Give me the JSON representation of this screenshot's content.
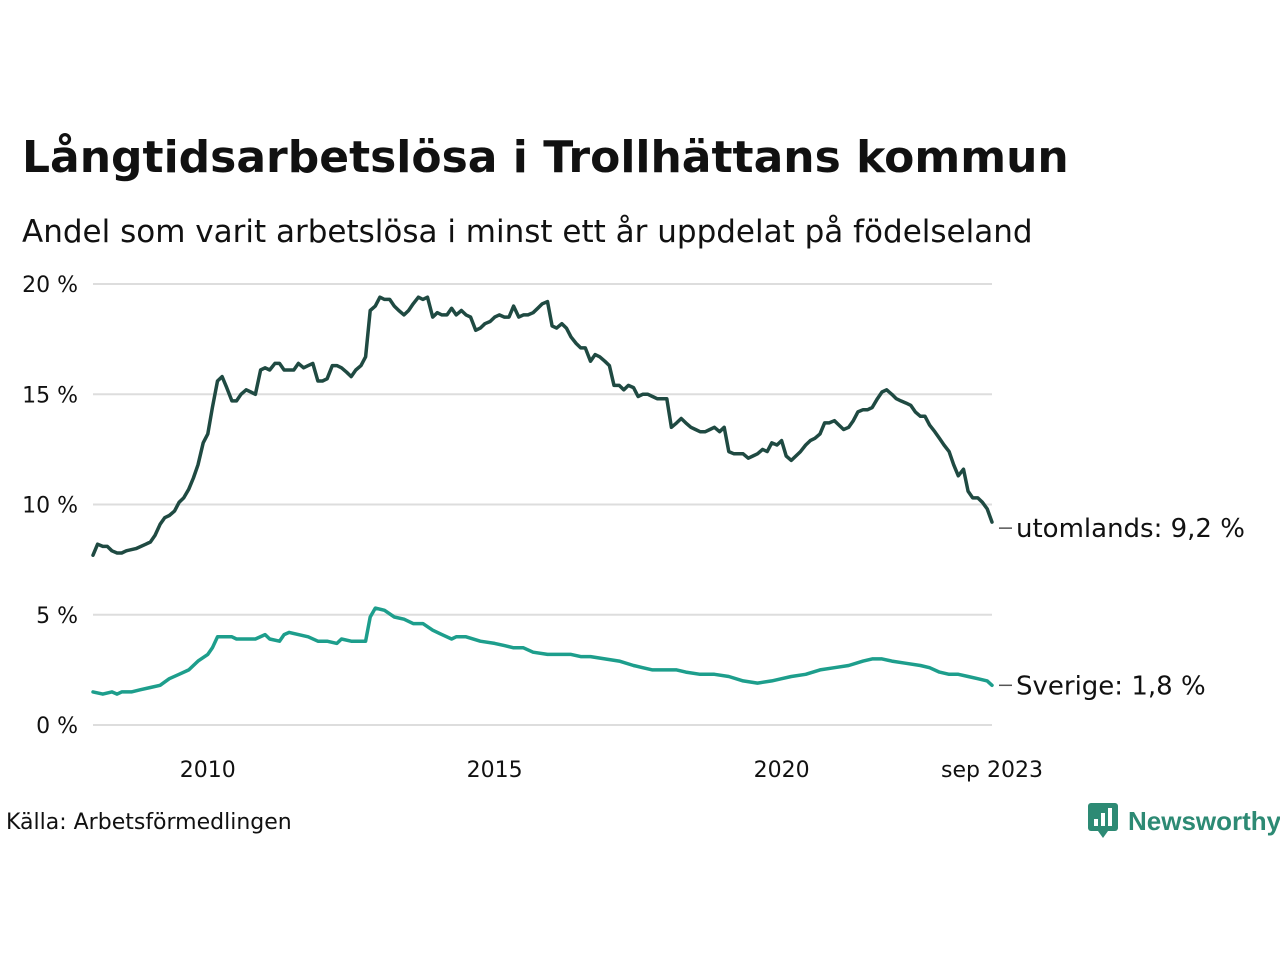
{
  "title": "Långtidsarbetslösa i Trollhättans kommun",
  "subtitle": "Andel som varit arbetslösa i minst ett år uppdelat på födelseland",
  "source": "Källa: Arbetsförmedlingen",
  "brand": "Newsworthy",
  "colors": {
    "utomlands": "#1f4a42",
    "sverige": "#1d9e8c",
    "grid": "#dddddd",
    "brand": "#2d8a74"
  },
  "chart_data": {
    "type": "line",
    "title": "Långtidsarbetslösa i Trollhättans kommun",
    "subtitle": "Andel som varit arbetslösa i minst ett år uppdelat på födelseland",
    "xlabel": "",
    "ylabel": "",
    "x_start": "2008-01",
    "x_end": "2023-09",
    "xlim": [
      2008.0,
      2023.667
    ],
    "ylim": [
      0,
      20
    ],
    "y_ticks": [
      0,
      5,
      10,
      15,
      20
    ],
    "y_tick_labels": [
      "0 %",
      "5 %",
      "10 %",
      "15 %",
      "20 %"
    ],
    "x_ticks": [
      2010,
      2015,
      2020,
      2023.667
    ],
    "x_tick_labels": [
      "2010",
      "2015",
      "2020",
      "sep 2023"
    ],
    "grid": true,
    "series": [
      {
        "name": "utomlands",
        "end_label": "utomlands: 9,2 %",
        "points": [
          [
            2008.0,
            7.7
          ],
          [
            2008.08,
            8.2
          ],
          [
            2008.17,
            8.1
          ],
          [
            2008.25,
            8.1
          ],
          [
            2008.33,
            7.9
          ],
          [
            2008.42,
            7.8
          ],
          [
            2008.5,
            7.8
          ],
          [
            2008.58,
            7.9
          ],
          [
            2008.75,
            8.0
          ],
          [
            2008.92,
            8.2
          ],
          [
            2009.0,
            8.3
          ],
          [
            2009.08,
            8.6
          ],
          [
            2009.17,
            9.1
          ],
          [
            2009.25,
            9.4
          ],
          [
            2009.33,
            9.5
          ],
          [
            2009.42,
            9.7
          ],
          [
            2009.5,
            10.1
          ],
          [
            2009.58,
            10.3
          ],
          [
            2009.67,
            10.7
          ],
          [
            2009.75,
            11.2
          ],
          [
            2009.83,
            11.8
          ],
          [
            2009.92,
            12.8
          ],
          [
            2010.0,
            13.2
          ],
          [
            2010.08,
            14.4
          ],
          [
            2010.17,
            15.6
          ],
          [
            2010.25,
            15.8
          ],
          [
            2010.33,
            15.3
          ],
          [
            2010.42,
            14.7
          ],
          [
            2010.5,
            14.7
          ],
          [
            2010.58,
            15.0
          ],
          [
            2010.67,
            15.2
          ],
          [
            2010.75,
            15.1
          ],
          [
            2010.83,
            15.0
          ],
          [
            2010.92,
            16.1
          ],
          [
            2011.0,
            16.2
          ],
          [
            2011.08,
            16.1
          ],
          [
            2011.17,
            16.4
          ],
          [
            2011.25,
            16.4
          ],
          [
            2011.33,
            16.1
          ],
          [
            2011.42,
            16.1
          ],
          [
            2011.5,
            16.1
          ],
          [
            2011.58,
            16.4
          ],
          [
            2011.67,
            16.2
          ],
          [
            2011.75,
            16.3
          ],
          [
            2011.83,
            16.4
          ],
          [
            2011.92,
            15.6
          ],
          [
            2012.0,
            15.6
          ],
          [
            2012.08,
            15.7
          ],
          [
            2012.17,
            16.3
          ],
          [
            2012.25,
            16.3
          ],
          [
            2012.33,
            16.2
          ],
          [
            2012.42,
            16.0
          ],
          [
            2012.5,
            15.8
          ],
          [
            2012.58,
            16.1
          ],
          [
            2012.67,
            16.3
          ],
          [
            2012.75,
            16.7
          ],
          [
            2012.83,
            18.8
          ],
          [
            2012.92,
            19.0
          ],
          [
            2013.0,
            19.4
          ],
          [
            2013.08,
            19.3
          ],
          [
            2013.17,
            19.3
          ],
          [
            2013.25,
            19.0
          ],
          [
            2013.33,
            18.8
          ],
          [
            2013.42,
            18.6
          ],
          [
            2013.5,
            18.8
          ],
          [
            2013.58,
            19.1
          ],
          [
            2013.67,
            19.4
          ],
          [
            2013.75,
            19.3
          ],
          [
            2013.83,
            19.4
          ],
          [
            2013.92,
            18.5
          ],
          [
            2014.0,
            18.7
          ],
          [
            2014.08,
            18.6
          ],
          [
            2014.17,
            18.6
          ],
          [
            2014.25,
            18.9
          ],
          [
            2014.33,
            18.6
          ],
          [
            2014.42,
            18.8
          ],
          [
            2014.5,
            18.6
          ],
          [
            2014.58,
            18.5
          ],
          [
            2014.67,
            17.9
          ],
          [
            2014.75,
            18.0
          ],
          [
            2014.83,
            18.2
          ],
          [
            2014.92,
            18.3
          ],
          [
            2015.0,
            18.5
          ],
          [
            2015.08,
            18.6
          ],
          [
            2015.17,
            18.5
          ],
          [
            2015.25,
            18.5
          ],
          [
            2015.33,
            19.0
          ],
          [
            2015.42,
            18.5
          ],
          [
            2015.5,
            18.6
          ],
          [
            2015.58,
            18.6
          ],
          [
            2015.67,
            18.7
          ],
          [
            2015.75,
            18.9
          ],
          [
            2015.83,
            19.1
          ],
          [
            2015.92,
            19.2
          ],
          [
            2016.0,
            18.1
          ],
          [
            2016.08,
            18.0
          ],
          [
            2016.17,
            18.2
          ],
          [
            2016.25,
            18.0
          ],
          [
            2016.33,
            17.6
          ],
          [
            2016.42,
            17.3
          ],
          [
            2016.5,
            17.1
          ],
          [
            2016.58,
            17.1
          ],
          [
            2016.67,
            16.5
          ],
          [
            2016.75,
            16.8
          ],
          [
            2016.83,
            16.7
          ],
          [
            2016.92,
            16.5
          ],
          [
            2017.0,
            16.3
          ],
          [
            2017.08,
            15.4
          ],
          [
            2017.17,
            15.4
          ],
          [
            2017.25,
            15.2
          ],
          [
            2017.33,
            15.4
          ],
          [
            2017.42,
            15.3
          ],
          [
            2017.5,
            14.9
          ],
          [
            2017.58,
            15.0
          ],
          [
            2017.67,
            15.0
          ],
          [
            2017.75,
            14.9
          ],
          [
            2017.83,
            14.8
          ],
          [
            2017.92,
            14.8
          ],
          [
            2018.0,
            14.8
          ],
          [
            2018.08,
            13.5
          ],
          [
            2018.17,
            13.7
          ],
          [
            2018.25,
            13.9
          ],
          [
            2018.33,
            13.7
          ],
          [
            2018.42,
            13.5
          ],
          [
            2018.5,
            13.4
          ],
          [
            2018.58,
            13.3
          ],
          [
            2018.67,
            13.3
          ],
          [
            2018.75,
            13.4
          ],
          [
            2018.83,
            13.5
          ],
          [
            2018.92,
            13.3
          ],
          [
            2019.0,
            13.5
          ],
          [
            2019.08,
            12.4
          ],
          [
            2019.17,
            12.3
          ],
          [
            2019.25,
            12.3
          ],
          [
            2019.33,
            12.3
          ],
          [
            2019.42,
            12.1
          ],
          [
            2019.5,
            12.2
          ],
          [
            2019.58,
            12.3
          ],
          [
            2019.67,
            12.5
          ],
          [
            2019.75,
            12.4
          ],
          [
            2019.83,
            12.8
          ],
          [
            2019.92,
            12.7
          ],
          [
            2020.0,
            12.9
          ],
          [
            2020.08,
            12.2
          ],
          [
            2020.17,
            12.0
          ],
          [
            2020.25,
            12.2
          ],
          [
            2020.33,
            12.4
          ],
          [
            2020.42,
            12.7
          ],
          [
            2020.5,
            12.9
          ],
          [
            2020.58,
            13.0
          ],
          [
            2020.67,
            13.2
          ],
          [
            2020.75,
            13.7
          ],
          [
            2020.83,
            13.7
          ],
          [
            2020.92,
            13.8
          ],
          [
            2021.0,
            13.6
          ],
          [
            2021.08,
            13.4
          ],
          [
            2021.17,
            13.5
          ],
          [
            2021.25,
            13.8
          ],
          [
            2021.33,
            14.2
          ],
          [
            2021.42,
            14.3
          ],
          [
            2021.5,
            14.3
          ],
          [
            2021.58,
            14.4
          ],
          [
            2021.67,
            14.8
          ],
          [
            2021.75,
            15.1
          ],
          [
            2021.83,
            15.2
          ],
          [
            2021.92,
            15.0
          ],
          [
            2022.0,
            14.8
          ],
          [
            2022.08,
            14.7
          ],
          [
            2022.17,
            14.6
          ],
          [
            2022.25,
            14.5
          ],
          [
            2022.33,
            14.2
          ],
          [
            2022.42,
            14.0
          ],
          [
            2022.5,
            14.0
          ],
          [
            2022.58,
            13.6
          ],
          [
            2022.67,
            13.3
          ],
          [
            2022.75,
            13.0
          ],
          [
            2022.83,
            12.7
          ],
          [
            2022.92,
            12.4
          ],
          [
            2023.0,
            11.8
          ],
          [
            2023.08,
            11.3
          ],
          [
            2023.17,
            11.6
          ],
          [
            2023.25,
            10.6
          ],
          [
            2023.33,
            10.3
          ],
          [
            2023.42,
            10.3
          ],
          [
            2023.5,
            10.1
          ],
          [
            2023.583,
            9.8
          ],
          [
            2023.667,
            9.2
          ]
        ]
      },
      {
        "name": "Sverige",
        "end_label": "Sverige: 1,8 %",
        "points": [
          [
            2008.0,
            1.5
          ],
          [
            2008.17,
            1.4
          ],
          [
            2008.33,
            1.5
          ],
          [
            2008.42,
            1.4
          ],
          [
            2008.5,
            1.5
          ],
          [
            2008.67,
            1.5
          ],
          [
            2008.83,
            1.6
          ],
          [
            2009.0,
            1.7
          ],
          [
            2009.17,
            1.8
          ],
          [
            2009.33,
            2.1
          ],
          [
            2009.5,
            2.3
          ],
          [
            2009.67,
            2.5
          ],
          [
            2009.83,
            2.9
          ],
          [
            2010.0,
            3.2
          ],
          [
            2010.08,
            3.5
          ],
          [
            2010.17,
            4.0
          ],
          [
            2010.33,
            4.0
          ],
          [
            2010.42,
            4.0
          ],
          [
            2010.5,
            3.9
          ],
          [
            2010.67,
            3.9
          ],
          [
            2010.83,
            3.9
          ],
          [
            2011.0,
            4.1
          ],
          [
            2011.08,
            3.9
          ],
          [
            2011.25,
            3.8
          ],
          [
            2011.33,
            4.1
          ],
          [
            2011.42,
            4.2
          ],
          [
            2011.58,
            4.1
          ],
          [
            2011.75,
            4.0
          ],
          [
            2011.92,
            3.8
          ],
          [
            2012.08,
            3.8
          ],
          [
            2012.25,
            3.7
          ],
          [
            2012.33,
            3.9
          ],
          [
            2012.5,
            3.8
          ],
          [
            2012.67,
            3.8
          ],
          [
            2012.75,
            3.8
          ],
          [
            2012.83,
            4.9
          ],
          [
            2012.92,
            5.3
          ],
          [
            2013.08,
            5.2
          ],
          [
            2013.25,
            4.9
          ],
          [
            2013.42,
            4.8
          ],
          [
            2013.58,
            4.6
          ],
          [
            2013.75,
            4.6
          ],
          [
            2013.92,
            4.3
          ],
          [
            2014.08,
            4.1
          ],
          [
            2014.25,
            3.9
          ],
          [
            2014.33,
            4.0
          ],
          [
            2014.5,
            4.0
          ],
          [
            2014.75,
            3.8
          ],
          [
            2015.0,
            3.7
          ],
          [
            2015.17,
            3.6
          ],
          [
            2015.33,
            3.5
          ],
          [
            2015.5,
            3.5
          ],
          [
            2015.67,
            3.3
          ],
          [
            2015.92,
            3.2
          ],
          [
            2016.08,
            3.2
          ],
          [
            2016.33,
            3.2
          ],
          [
            2016.5,
            3.1
          ],
          [
            2016.67,
            3.1
          ],
          [
            2016.92,
            3.0
          ],
          [
            2017.17,
            2.9
          ],
          [
            2017.42,
            2.7
          ],
          [
            2017.58,
            2.6
          ],
          [
            2017.75,
            2.5
          ],
          [
            2018.0,
            2.5
          ],
          [
            2018.17,
            2.5
          ],
          [
            2018.33,
            2.4
          ],
          [
            2018.58,
            2.3
          ],
          [
            2018.83,
            2.3
          ],
          [
            2019.08,
            2.2
          ],
          [
            2019.33,
            2.0
          ],
          [
            2019.58,
            1.9
          ],
          [
            2019.83,
            2.0
          ],
          [
            2020.0,
            2.1
          ],
          [
            2020.17,
            2.2
          ],
          [
            2020.42,
            2.3
          ],
          [
            2020.67,
            2.5
          ],
          [
            2020.92,
            2.6
          ],
          [
            2021.17,
            2.7
          ],
          [
            2021.42,
            2.9
          ],
          [
            2021.58,
            3.0
          ],
          [
            2021.75,
            3.0
          ],
          [
            2021.92,
            2.9
          ],
          [
            2022.17,
            2.8
          ],
          [
            2022.42,
            2.7
          ],
          [
            2022.58,
            2.6
          ],
          [
            2022.75,
            2.4
          ],
          [
            2022.92,
            2.3
          ],
          [
            2023.08,
            2.3
          ],
          [
            2023.25,
            2.2
          ],
          [
            2023.42,
            2.1
          ],
          [
            2023.583,
            2.0
          ],
          [
            2023.667,
            1.8
          ]
        ]
      }
    ]
  }
}
